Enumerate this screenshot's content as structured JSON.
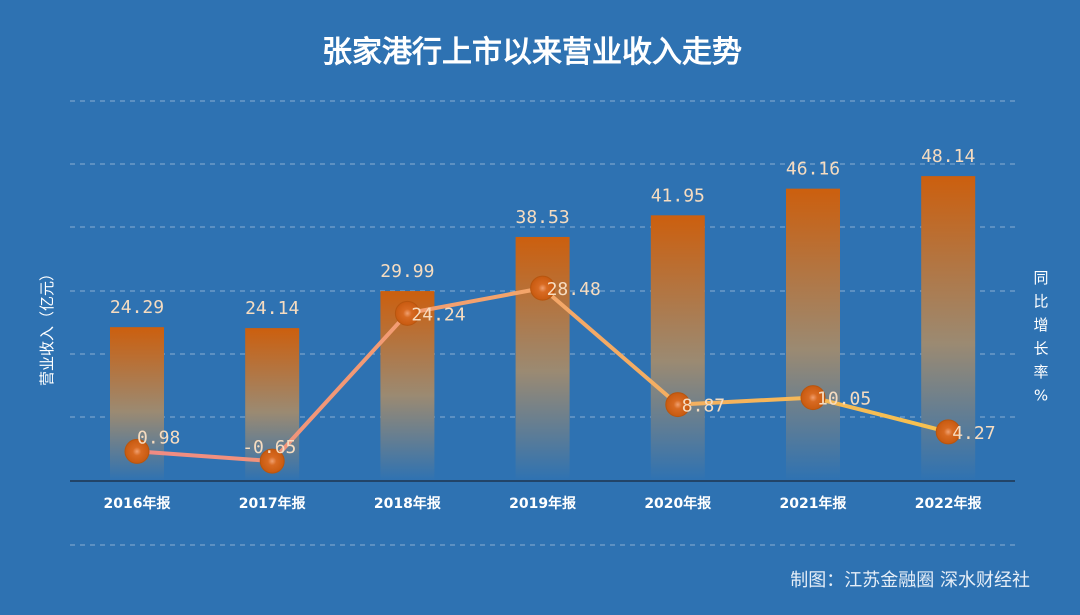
{
  "chart_data": {
    "type": "bar",
    "title": "张家港行上市以来营业收入走势",
    "categories": [
      "2016年报",
      "2017年报",
      "2018年报",
      "2019年报",
      "2020年报",
      "2021年报",
      "2022年报"
    ],
    "series": [
      {
        "name": "营业收入",
        "type": "bar",
        "axis": "left",
        "values": [
          24.29,
          24.14,
          29.99,
          38.53,
          41.95,
          46.16,
          48.14
        ],
        "labels": [
          "24.29",
          "24.14",
          "29.99",
          "38.53",
          "41.95",
          "46.16",
          "48.14"
        ]
      },
      {
        "name": "同比增长率",
        "type": "line",
        "axis": "right",
        "values": [
          0.98,
          -0.65,
          24.24,
          28.48,
          8.87,
          10.05,
          4.27
        ],
        "labels": [
          "0.98",
          "-0.65",
          "24.24",
          "28.48",
          "8.87",
          "10.05",
          "4.27"
        ]
      }
    ],
    "ylabel": "营业收入（亿元）",
    "ylabel_right": "同比增长率%",
    "ylim": [
      0,
      60
    ],
    "ylim_right": [
      -4,
      60
    ],
    "grid": true,
    "legend": "none"
  },
  "credit": "制图：江苏金融圈 深水财经社",
  "colors": {
    "background": "#2e72b2",
    "bar_top": "#cc5f0e",
    "bar_bottom": "#2e72b2",
    "line_start": "#f08a84",
    "line_end": "#f7c24e",
    "marker": "#d4661a",
    "grid": "#a8c4de"
  }
}
